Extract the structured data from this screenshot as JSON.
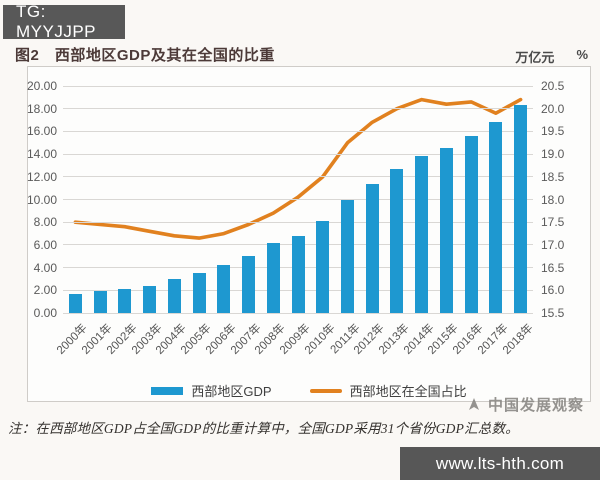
{
  "header": {
    "badge": "TG: MYYJJPP"
  },
  "chart": {
    "title": "图2　西部地区GDP及其在全国的比重",
    "unit_left": "万亿元",
    "unit_right": "%"
  },
  "chart_data": {
    "type": "bar",
    "subtype": "bar+line dual axis",
    "title": "图2 西部地区GDP及其在全国的比重",
    "categories": [
      "2000年",
      "2001年",
      "2002年",
      "2003年",
      "2004年",
      "2005年",
      "2006年",
      "2007年",
      "2008年",
      "2009年",
      "2010年",
      "2011年",
      "2012年",
      "2013年",
      "2014年",
      "2015年",
      "2016年",
      "2017年",
      "2018年"
    ],
    "series": [
      {
        "name": "西部地区GDP",
        "type": "bar",
        "axis": "left",
        "unit": "万亿元",
        "color": "#1e98d0",
        "values": [
          1.7,
          1.9,
          2.1,
          2.4,
          3.0,
          3.5,
          4.2,
          5.0,
          6.2,
          6.8,
          8.1,
          10.0,
          11.4,
          12.7,
          13.8,
          14.5,
          15.6,
          16.8,
          18.3
        ]
      },
      {
        "name": "西部地区在全国占比",
        "type": "line",
        "axis": "right",
        "unit": "%",
        "color": "#e1811f",
        "values": [
          17.5,
          17.45,
          17.4,
          17.3,
          17.2,
          17.15,
          17.25,
          17.45,
          17.7,
          18.05,
          18.5,
          19.25,
          19.7,
          20.0,
          20.2,
          20.1,
          20.15,
          19.9,
          20.2
        ]
      }
    ],
    "left_axis": {
      "min": 0,
      "max": 20,
      "step": 2,
      "labels": [
        "0.00",
        "2.00",
        "4.00",
        "6.00",
        "8.00",
        "10.00",
        "12.00",
        "14.00",
        "16.00",
        "18.00",
        "20.00"
      ]
    },
    "right_axis": {
      "min": 15.5,
      "max": 20.5,
      "step": 0.5,
      "labels": [
        "15.5",
        "16.0",
        "16.5",
        "17.0",
        "17.5",
        "18.0",
        "18.5",
        "19.0",
        "19.5",
        "20.0",
        "20.5"
      ]
    },
    "grid": true,
    "legend_position": "bottom"
  },
  "note": {
    "text": "注：在西部地区GDP占全国GDP的比重计算中，全国GDP采用31个省份GDP汇总数。"
  },
  "watermark": {
    "text": "中国发展观察"
  },
  "footer": {
    "url": "www.lts-hth.com"
  },
  "colors": {
    "bar": "#1e98d0",
    "line": "#e1811f",
    "topbar": "#585858",
    "footerbar": "#575757",
    "grid": "#d9d7d4"
  }
}
